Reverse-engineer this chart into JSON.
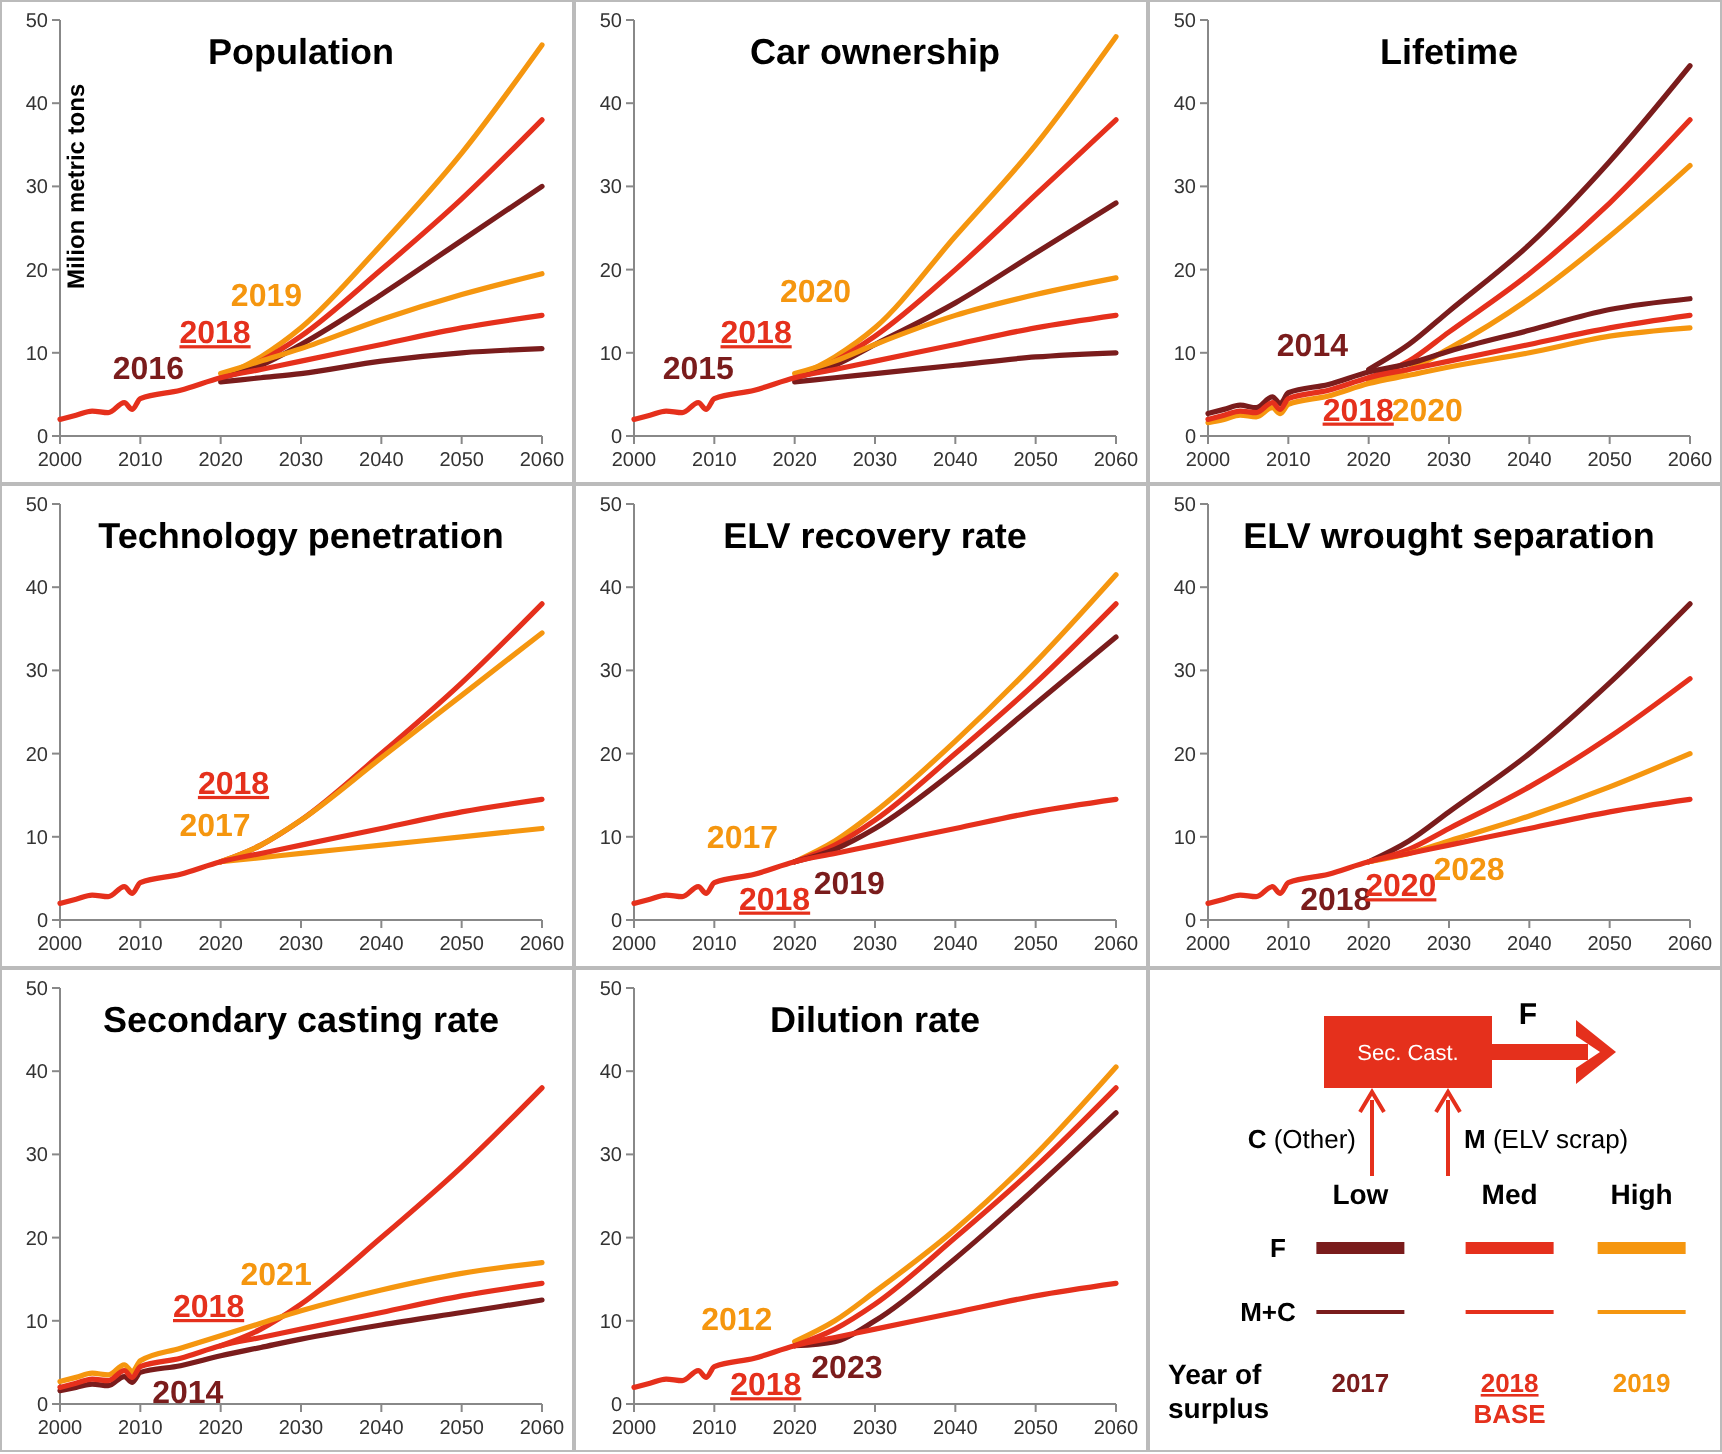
{
  "chart_data": [
    {
      "type": "line",
      "title": "Population",
      "ylabel": "Milion metric tons",
      "xlim": [
        2000,
        2060
      ],
      "ylim": [
        0,
        50
      ],
      "xticks": [
        2000,
        2010,
        2020,
        2030,
        2040,
        2050,
        2060
      ],
      "yticks": [
        0,
        10,
        20,
        30,
        40,
        50
      ],
      "x": [
        2000,
        2002,
        2004,
        2006,
        2008,
        2009,
        2010,
        2015,
        2020,
        2025,
        2030,
        2040,
        2050,
        2060
      ],
      "series": [
        {
          "color": "#f5960f",
          "values": [
            null,
            null,
            null,
            null,
            null,
            null,
            null,
            null,
            7,
            9.5,
            13,
            23,
            34,
            47
          ]
        },
        {
          "color": "#e5301c",
          "values": [
            null,
            null,
            null,
            null,
            null,
            null,
            null,
            null,
            7,
            9,
            12,
            20,
            28.5,
            38
          ]
        },
        {
          "color": "#7a1c1c",
          "values": [
            null,
            null,
            null,
            null,
            null,
            null,
            null,
            null,
            7,
            8.5,
            11,
            17,
            23.5,
            30
          ]
        },
        {
          "color": "#f5960f",
          "values": [
            null,
            null,
            null,
            null,
            null,
            null,
            null,
            null,
            7.5,
            9,
            10.5,
            14,
            17,
            19.5
          ]
        },
        {
          "color": "#7a1c1c",
          "values": [
            null,
            null,
            null,
            null,
            null,
            null,
            null,
            null,
            6.5,
            7,
            7.5,
            9,
            10,
            10.5
          ]
        },
        {
          "color": "#e5301c",
          "values": [
            2,
            2.5,
            3,
            2.8,
            4,
            3.2,
            4.5,
            5.5,
            7,
            8,
            9,
            11,
            13,
            14.5
          ]
        }
      ],
      "annotations": [
        "2016",
        "2018",
        "2019"
      ]
    },
    {
      "type": "line",
      "title": "Car ownership",
      "xlim": [
        2000,
        2060
      ],
      "ylim": [
        0,
        50
      ],
      "xticks": [
        2000,
        2010,
        2020,
        2030,
        2040,
        2050,
        2060
      ],
      "yticks": [
        0,
        10,
        20,
        30,
        40,
        50
      ],
      "x": [
        2000,
        2002,
        2004,
        2006,
        2008,
        2009,
        2010,
        2015,
        2020,
        2025,
        2030,
        2040,
        2050,
        2060
      ],
      "series": [
        {
          "color": "#f5960f",
          "values": [
            null,
            null,
            null,
            null,
            null,
            null,
            null,
            null,
            7,
            9.5,
            13,
            24,
            35,
            48
          ]
        },
        {
          "color": "#e5301c",
          "values": [
            null,
            null,
            null,
            null,
            null,
            null,
            null,
            null,
            7,
            9,
            12,
            20,
            29,
            38
          ]
        },
        {
          "color": "#7a1c1c",
          "values": [
            null,
            null,
            null,
            null,
            null,
            null,
            null,
            null,
            7,
            8.5,
            11,
            16,
            22,
            28
          ]
        },
        {
          "color": "#f5960f",
          "values": [
            null,
            null,
            null,
            null,
            null,
            null,
            null,
            null,
            7.5,
            9,
            11,
            14.5,
            17,
            19
          ]
        },
        {
          "color": "#7a1c1c",
          "values": [
            null,
            null,
            null,
            null,
            null,
            null,
            null,
            null,
            6.5,
            7,
            7.5,
            8.5,
            9.5,
            10
          ]
        },
        {
          "color": "#e5301c",
          "values": [
            2,
            2.5,
            3,
            2.8,
            4,
            3.2,
            4.5,
            5.5,
            7,
            8,
            9,
            11,
            13,
            14.5
          ]
        }
      ],
      "annotations": [
        "2015",
        "2018",
        "2020"
      ]
    },
    {
      "type": "line",
      "title": "Lifetime",
      "xlim": [
        2000,
        2060
      ],
      "ylim": [
        0,
        50
      ],
      "xticks": [
        2000,
        2010,
        2020,
        2030,
        2040,
        2050,
        2060
      ],
      "yticks": [
        0,
        10,
        20,
        30,
        40,
        50
      ],
      "x": [
        2000,
        2002,
        2004,
        2006,
        2008,
        2009,
        2010,
        2015,
        2020,
        2025,
        2030,
        2040,
        2050,
        2060
      ],
      "series": [
        {
          "color": "#7a1c1c",
          "values": [
            null,
            null,
            null,
            null,
            null,
            null,
            null,
            null,
            8,
            11,
            15,
            23,
            33,
            44.5
          ]
        },
        {
          "color": "#e5301c",
          "values": [
            null,
            null,
            null,
            null,
            null,
            null,
            null,
            null,
            7,
            9,
            12.5,
            19.5,
            28,
            38
          ]
        },
        {
          "color": "#f5960f",
          "values": [
            null,
            null,
            null,
            null,
            null,
            null,
            null,
            null,
            6.5,
            8,
            10.5,
            16.5,
            24,
            32.5
          ]
        },
        {
          "color": "#7a1c1c",
          "values": [
            2.7,
            3.2,
            3.7,
            3.4,
            4.7,
            3.9,
            5.2,
            6.2,
            7.7,
            8.7,
            10.2,
            12.7,
            15.2,
            16.5
          ]
        },
        {
          "color": "#f5960f",
          "values": [
            1.6,
            2,
            2.5,
            2.3,
            3.4,
            2.7,
            3.8,
            4.8,
            6.3,
            7.3,
            8.3,
            10,
            12,
            13
          ]
        },
        {
          "color": "#e5301c",
          "values": [
            2,
            2.5,
            3,
            2.8,
            4,
            3.2,
            4.5,
            5.5,
            7,
            8,
            9,
            11,
            13,
            14.5
          ]
        }
      ],
      "annotations": [
        "2014",
        "2018",
        "2020"
      ]
    },
    {
      "type": "line",
      "title": "Technology penetration",
      "xlim": [
        2000,
        2060
      ],
      "ylim": [
        0,
        50
      ],
      "xticks": [
        2000,
        2010,
        2020,
        2030,
        2040,
        2050,
        2060
      ],
      "yticks": [
        0,
        10,
        20,
        30,
        40,
        50
      ],
      "x": [
        2000,
        2002,
        2004,
        2006,
        2008,
        2009,
        2010,
        2015,
        2020,
        2025,
        2030,
        2040,
        2050,
        2060
      ],
      "series": [
        {
          "color": "#e5301c",
          "values": [
            null,
            null,
            null,
            null,
            null,
            null,
            null,
            null,
            7,
            9,
            12,
            20,
            28.5,
            38
          ]
        },
        {
          "color": "#f5960f",
          "values": [
            null,
            null,
            null,
            null,
            null,
            null,
            null,
            null,
            7,
            9,
            12,
            19.5,
            27,
            34.5
          ]
        },
        {
          "color": "#f5960f",
          "values": [
            null,
            null,
            null,
            null,
            null,
            null,
            null,
            null,
            7,
            7.5,
            8,
            9,
            10,
            11
          ]
        },
        {
          "color": "#e5301c",
          "values": [
            2,
            2.5,
            3,
            2.8,
            4,
            3.2,
            4.5,
            5.5,
            7,
            8,
            9,
            11,
            13,
            14.5
          ]
        }
      ],
      "annotations": [
        "2018",
        "2017"
      ]
    },
    {
      "type": "line",
      "title": "ELV  recovery rate",
      "xlim": [
        2000,
        2060
      ],
      "ylim": [
        0,
        50
      ],
      "xticks": [
        2000,
        2010,
        2020,
        2030,
        2040,
        2050,
        2060
      ],
      "yticks": [
        0,
        10,
        20,
        30,
        40,
        50
      ],
      "x": [
        2000,
        2002,
        2004,
        2006,
        2008,
        2009,
        2010,
        2015,
        2020,
        2025,
        2030,
        2040,
        2050,
        2060
      ],
      "series": [
        {
          "color": "#f5960f",
          "values": [
            null,
            null,
            null,
            null,
            null,
            null,
            null,
            null,
            7,
            9.5,
            13,
            21.5,
            31,
            41.5
          ]
        },
        {
          "color": "#e5301c",
          "values": [
            null,
            null,
            null,
            null,
            null,
            null,
            null,
            null,
            7,
            9,
            12,
            20,
            28.5,
            38
          ]
        },
        {
          "color": "#7a1c1c",
          "values": [
            null,
            null,
            null,
            null,
            null,
            null,
            null,
            null,
            7,
            8.5,
            11,
            18,
            26,
            34
          ]
        },
        {
          "color": "#e5301c",
          "values": [
            2,
            2.5,
            3,
            2.8,
            4,
            3.2,
            4.5,
            5.5,
            7,
            8,
            9,
            11,
            13,
            14.5
          ]
        }
      ],
      "annotations": [
        "2017",
        "2018",
        "2019"
      ]
    },
    {
      "type": "line",
      "title": "ELV wrought separation",
      "xlim": [
        2000,
        2060
      ],
      "ylim": [
        0,
        50
      ],
      "xticks": [
        2000,
        2010,
        2020,
        2030,
        2040,
        2050,
        2060
      ],
      "yticks": [
        0,
        10,
        20,
        30,
        40,
        50
      ],
      "x": [
        2000,
        2002,
        2004,
        2006,
        2008,
        2009,
        2010,
        2015,
        2020,
        2025,
        2030,
        2040,
        2050,
        2060
      ],
      "series": [
        {
          "color": "#7a1c1c",
          "values": [
            null,
            null,
            null,
            null,
            null,
            null,
            null,
            null,
            7,
            9.5,
            13,
            20,
            28.5,
            38
          ]
        },
        {
          "color": "#e5301c",
          "values": [
            null,
            null,
            null,
            null,
            null,
            null,
            null,
            null,
            7,
            8.5,
            11,
            16,
            22,
            29
          ]
        },
        {
          "color": "#f5960f",
          "values": [
            null,
            null,
            null,
            null,
            null,
            null,
            null,
            null,
            7,
            8,
            9.5,
            12.5,
            16,
            20
          ]
        },
        {
          "color": "#e5301c",
          "values": [
            2,
            2.5,
            3,
            2.8,
            4,
            3.2,
            4.5,
            5.5,
            7,
            8,
            9,
            11,
            13,
            14.5
          ]
        }
      ],
      "annotations": [
        "2018",
        "2020",
        "2028"
      ]
    },
    {
      "type": "line",
      "title": "Secondary casting rate",
      "xlim": [
        2000,
        2060
      ],
      "ylim": [
        0,
        50
      ],
      "xticks": [
        2000,
        2010,
        2020,
        2030,
        2040,
        2050,
        2060
      ],
      "yticks": [
        0,
        10,
        20,
        30,
        40,
        50
      ],
      "x": [
        2000,
        2002,
        2004,
        2006,
        2008,
        2009,
        2010,
        2015,
        2020,
        2025,
        2030,
        2040,
        2050,
        2060
      ],
      "series": [
        {
          "color": "#e5301c",
          "values": [
            null,
            null,
            null,
            null,
            null,
            null,
            null,
            null,
            7,
            9,
            12,
            20,
            28.5,
            38
          ]
        },
        {
          "color": "#f5960f",
          "values": [
            2.7,
            3.2,
            3.7,
            3.5,
            4.7,
            3.9,
            5.2,
            6.7,
            8.2,
            9.7,
            11.2,
            13.7,
            15.7,
            17
          ]
        },
        {
          "color": "#7a1c1c",
          "values": [
            1.6,
            2,
            2.4,
            2.2,
            3.3,
            2.6,
            3.8,
            4.6,
            5.8,
            6.8,
            7.8,
            9.5,
            11,
            12.5
          ]
        },
        {
          "color": "#e5301c",
          "values": [
            2,
            2.5,
            3,
            2.8,
            4,
            3.2,
            4.5,
            5.5,
            7,
            8,
            9,
            11,
            13,
            14.5
          ]
        }
      ],
      "annotations": [
        "2021",
        "2018",
        "2014"
      ]
    },
    {
      "type": "line",
      "title": "Dilution rate",
      "xlim": [
        2000,
        2060
      ],
      "ylim": [
        0,
        50
      ],
      "xticks": [
        2000,
        2010,
        2020,
        2030,
        2040,
        2050,
        2060
      ],
      "yticks": [
        0,
        10,
        20,
        30,
        40,
        50
      ],
      "x": [
        2000,
        2002,
        2004,
        2006,
        2008,
        2009,
        2010,
        2015,
        2020,
        2025,
        2030,
        2040,
        2050,
        2060
      ],
      "series": [
        {
          "color": "#f5960f",
          "values": [
            null,
            null,
            null,
            null,
            null,
            null,
            null,
            null,
            7.5,
            10,
            13.5,
            21,
            30,
            40.5
          ]
        },
        {
          "color": "#e5301c",
          "values": [
            null,
            null,
            null,
            null,
            null,
            null,
            null,
            null,
            7,
            9,
            12,
            20,
            28.5,
            38
          ]
        },
        {
          "color": "#7a1c1c",
          "values": [
            null,
            null,
            null,
            null,
            null,
            null,
            null,
            null,
            7,
            7.5,
            10,
            17.5,
            26,
            35
          ]
        },
        {
          "color": "#e5301c",
          "values": [
            2,
            2.5,
            3,
            2.8,
            4,
            3.2,
            4.5,
            5.5,
            7,
            8,
            9,
            11,
            13,
            14.5
          ]
        }
      ],
      "annotations": [
        "2012",
        "2018",
        "2023"
      ]
    },
    {
      "type": "other",
      "categories": [
        "Low",
        "Med",
        "High"
      ],
      "colors": [
        "#7a1c1c",
        "#e5301c",
        "#f5960f"
      ],
      "annotations": [
        "Sec. Cast.",
        "F",
        "C (Other)",
        "M (ELV scrap)",
        "F",
        "M+C",
        "Year of surplus",
        "2017",
        "2018 BASE",
        "2019"
      ]
    }
  ]
}
